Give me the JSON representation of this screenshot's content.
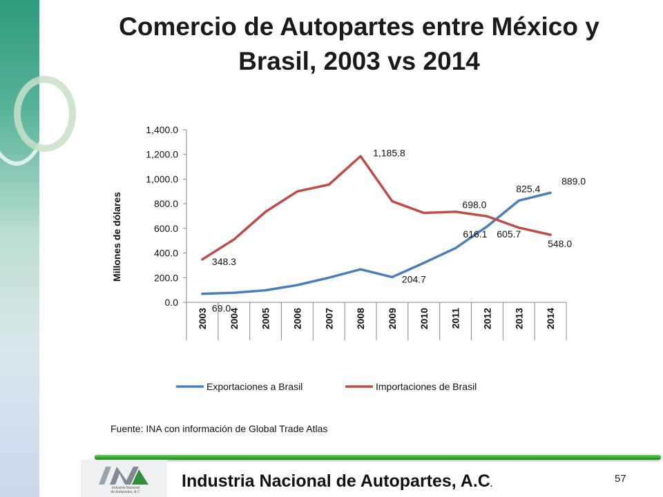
{
  "slide": {
    "title": "Comercio de Autopartes entre México y Brasil, 2003 vs 2014",
    "source": "Fuente: INA con información de Global Trade Atlas",
    "footer_company": "Industria Nacional de  Autopartes, A.C",
    "footer_company_dot": ".",
    "page_number": "57",
    "logo_caption": "Industria Nacional\nde Autopartes, A.C."
  },
  "chart_data": {
    "type": "line",
    "title": "",
    "ylabel": "Millones de dólares",
    "xlabel": "",
    "categories": [
      "2003",
      "2004",
      "2005",
      "2006",
      "2007",
      "2008",
      "2009",
      "2010",
      "2011",
      "2012",
      "2013",
      "2014"
    ],
    "ylim": [
      0,
      1400
    ],
    "yticks": [
      "0.0",
      "200.0",
      "400.0",
      "600.0",
      "800.0",
      "1,000.0",
      "1,200.0",
      "1,400.0"
    ],
    "ytick_values": [
      0,
      200,
      400,
      600,
      800,
      1000,
      1200,
      1400
    ],
    "grid": false,
    "legend_position": "bottom",
    "series": [
      {
        "name": "Exportaciones a Brasil",
        "color": "#4a7ebb",
        "values": [
          69.0,
          78,
          98,
          140,
          200,
          268,
          204.7,
          320,
          440,
          616.1,
          825.4,
          889.0
        ],
        "labels": [
          {
            "index": 0,
            "text": "69.0"
          },
          {
            "index": 6,
            "text": "204.7"
          },
          {
            "index": 9,
            "text": "616.1"
          },
          {
            "index": 10,
            "text": "825.4"
          },
          {
            "index": 11,
            "text": "889.0"
          }
        ]
      },
      {
        "name": "Importaciones de Brasil",
        "color": "#be4b48",
        "values": [
          348.3,
          510,
          735,
          900,
          955,
          1185.8,
          820,
          725,
          735,
          698.0,
          605.7,
          548.0
        ],
        "labels": [
          {
            "index": 0,
            "text": "348.3"
          },
          {
            "index": 5,
            "text": "1,185.8"
          },
          {
            "index": 9,
            "text": "698.0"
          },
          {
            "index": 10,
            "text": "605.7"
          },
          {
            "index": 11,
            "text": "548.0"
          }
        ]
      }
    ]
  }
}
